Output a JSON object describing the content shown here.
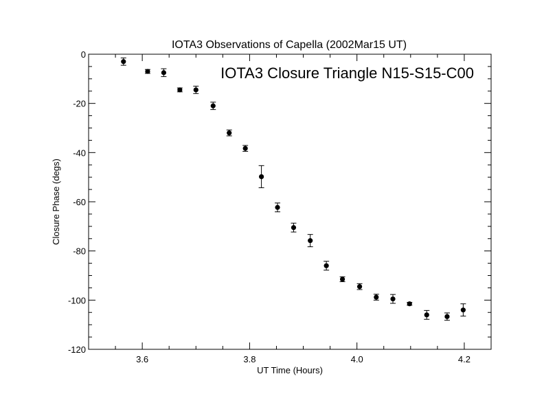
{
  "chart_data": {
    "type": "scatter",
    "title": "IOTA3 Observations of Capella (2002Mar15 UT)",
    "annotation": "IOTA3 Closure Triangle N15-S15-C00",
    "xlabel": "UT Time (Hours)",
    "ylabel": "Closure Phase (degs)",
    "xlim": [
      3.5,
      4.25
    ],
    "ylim": [
      -120,
      0
    ],
    "x_ticks": [
      3.6,
      3.8,
      4.0,
      4.2
    ],
    "x_tick_labels": [
      "3.6",
      "3.8",
      "4.0",
      "4.2"
    ],
    "y_ticks": [
      0,
      -20,
      -40,
      -60,
      -80,
      -100,
      -120
    ],
    "y_tick_labels": [
      "0",
      "-20",
      "-40",
      "-60",
      "-80",
      "-100",
      "-120"
    ],
    "grid": false,
    "marker": "filled-circle-with-error-bars",
    "series": [
      {
        "points": [
          {
            "x": 3.565,
            "y": -3.0,
            "err": 1.5
          },
          {
            "x": 3.61,
            "y": -7.0,
            "err": 0.8
          },
          {
            "x": 3.64,
            "y": -7.5,
            "err": 1.6
          },
          {
            "x": 3.67,
            "y": -14.5,
            "err": 0.8
          },
          {
            "x": 3.7,
            "y": -14.5,
            "err": 1.5
          },
          {
            "x": 3.732,
            "y": -21.0,
            "err": 1.5
          },
          {
            "x": 3.762,
            "y": -32.0,
            "err": 1.2
          },
          {
            "x": 3.792,
            "y": -38.3,
            "err": 1.2
          },
          {
            "x": 3.822,
            "y": -49.8,
            "err": 4.5
          },
          {
            "x": 3.852,
            "y": -62.3,
            "err": 1.8
          },
          {
            "x": 3.882,
            "y": -70.5,
            "err": 1.8
          },
          {
            "x": 3.913,
            "y": -75.8,
            "err": 2.5
          },
          {
            "x": 3.943,
            "y": -86.0,
            "err": 1.8
          },
          {
            "x": 3.973,
            "y": -91.5,
            "err": 1.0
          },
          {
            "x": 4.005,
            "y": -94.5,
            "err": 1.2
          },
          {
            "x": 4.036,
            "y": -98.8,
            "err": 1.2
          },
          {
            "x": 4.067,
            "y": -99.5,
            "err": 1.8
          },
          {
            "x": 4.098,
            "y": -101.5,
            "err": 0.6
          },
          {
            "x": 4.13,
            "y": -106.0,
            "err": 1.8
          },
          {
            "x": 4.168,
            "y": -106.7,
            "err": 1.5
          },
          {
            "x": 4.198,
            "y": -104.0,
            "err": 2.5
          }
        ]
      }
    ]
  }
}
